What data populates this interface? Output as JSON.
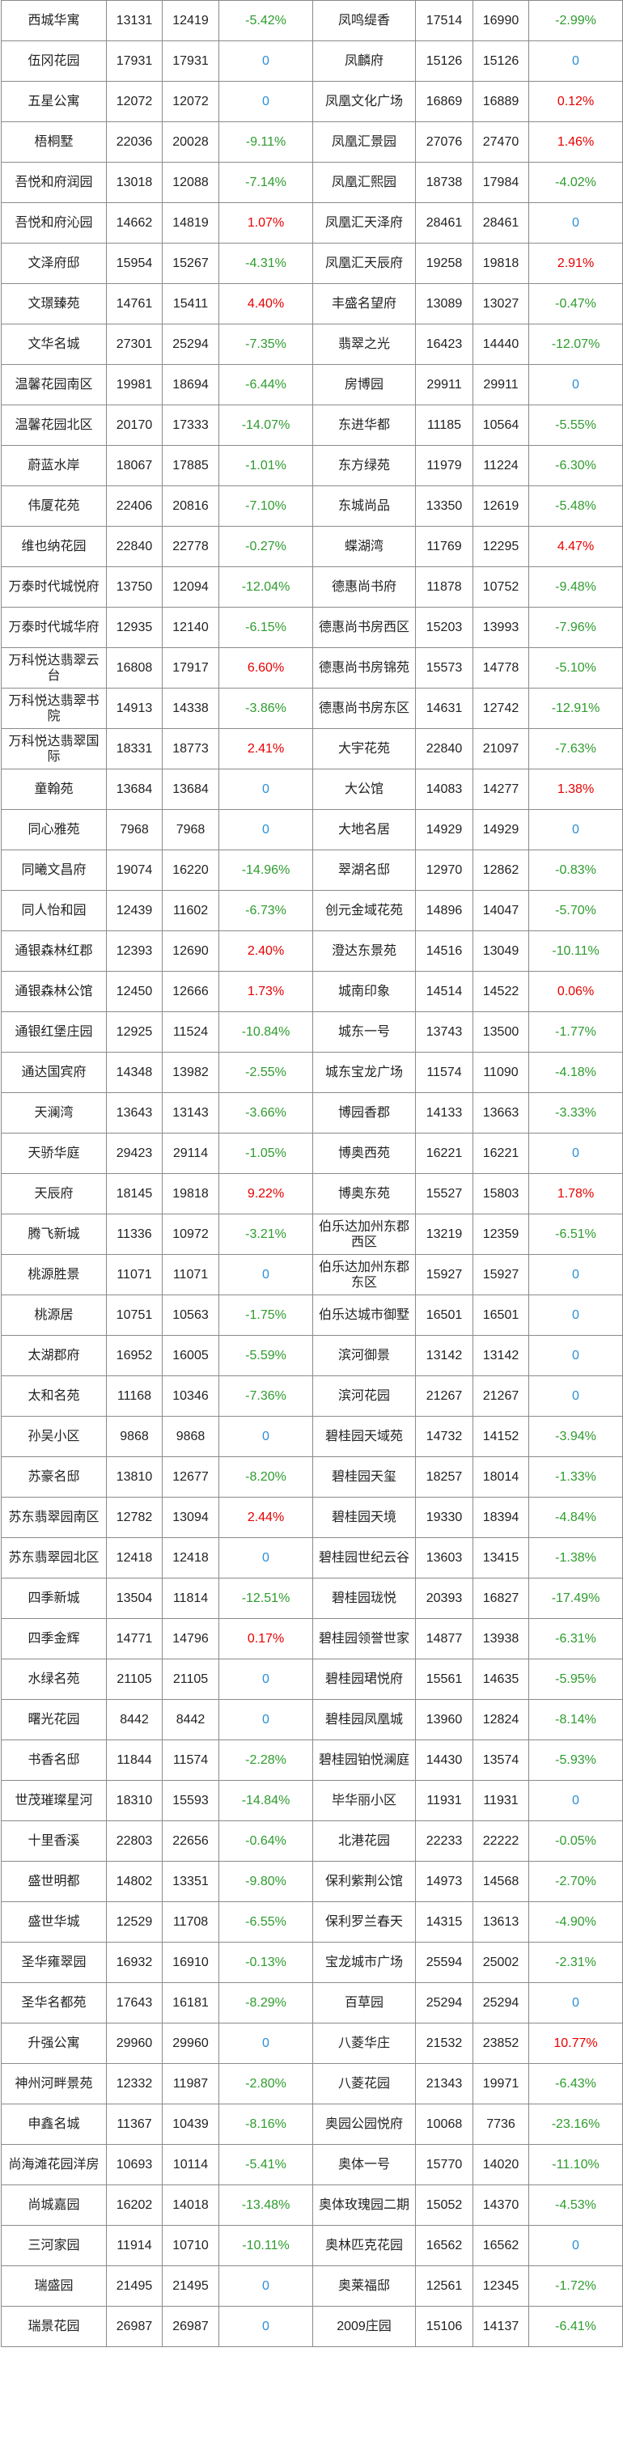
{
  "colors": {
    "up": "#e60000",
    "down": "#2e9c2e",
    "flat": "#2b8fd6"
  },
  "rows": [
    {
      "l": [
        "西城华寓",
        "13131",
        "12419",
        "-5.42%"
      ],
      "r": [
        "凤鸣缇香",
        "17514",
        "16990",
        "-2.99%"
      ]
    },
    {
      "l": [
        "伍冈花园",
        "17931",
        "17931",
        "0"
      ],
      "r": [
        "凤麟府",
        "15126",
        "15126",
        "0"
      ]
    },
    {
      "l": [
        "五星公寓",
        "12072",
        "12072",
        "0"
      ],
      "r": [
        "凤凰文化广场",
        "16869",
        "16889",
        "0.12%"
      ]
    },
    {
      "l": [
        "梧桐墅",
        "22036",
        "20028",
        "-9.11%"
      ],
      "r": [
        "凤凰汇景园",
        "27076",
        "27470",
        "1.46%"
      ]
    },
    {
      "l": [
        "吾悦和府润园",
        "13018",
        "12088",
        "-7.14%"
      ],
      "r": [
        "凤凰汇熙园",
        "18738",
        "17984",
        "-4.02%"
      ]
    },
    {
      "l": [
        "吾悦和府沁园",
        "14662",
        "14819",
        "1.07%"
      ],
      "r": [
        "凤凰汇天泽府",
        "28461",
        "28461",
        "0"
      ]
    },
    {
      "l": [
        "文泽府邸",
        "15954",
        "15267",
        "-4.31%"
      ],
      "r": [
        "凤凰汇天辰府",
        "19258",
        "19818",
        "2.91%"
      ]
    },
    {
      "l": [
        "文璟臻苑",
        "14761",
        "15411",
        "4.40%"
      ],
      "r": [
        "丰盛名望府",
        "13089",
        "13027",
        "-0.47%"
      ]
    },
    {
      "l": [
        "文华名城",
        "27301",
        "25294",
        "-7.35%"
      ],
      "r": [
        "翡翠之光",
        "16423",
        "14440",
        "-12.07%"
      ]
    },
    {
      "l": [
        "温馨花园南区",
        "19981",
        "18694",
        "-6.44%"
      ],
      "r": [
        "房博园",
        "29911",
        "29911",
        "0"
      ]
    },
    {
      "l": [
        "温馨花园北区",
        "20170",
        "17333",
        "-14.07%"
      ],
      "r": [
        "东进华都",
        "11185",
        "10564",
        "-5.55%"
      ]
    },
    {
      "l": [
        "蔚蓝水岸",
        "18067",
        "17885",
        "-1.01%"
      ],
      "r": [
        "东方绿苑",
        "11979",
        "11224",
        "-6.30%"
      ]
    },
    {
      "l": [
        "伟厦花苑",
        "22406",
        "20816",
        "-7.10%"
      ],
      "r": [
        "东城尚品",
        "13350",
        "12619",
        "-5.48%"
      ]
    },
    {
      "l": [
        "维也纳花园",
        "22840",
        "22778",
        "-0.27%"
      ],
      "r": [
        "蝶湖湾",
        "11769",
        "12295",
        "4.47%"
      ]
    },
    {
      "l": [
        "万泰时代城悦府",
        "13750",
        "12094",
        "-12.04%"
      ],
      "r": [
        "德惠尚书府",
        "11878",
        "10752",
        "-9.48%"
      ]
    },
    {
      "l": [
        "万泰时代城华府",
        "12935",
        "12140",
        "-6.15%"
      ],
      "r": [
        "德惠尚书房西区",
        "15203",
        "13993",
        "-7.96%"
      ]
    },
    {
      "l": [
        "万科悦达翡翠云台",
        "16808",
        "17917",
        "6.60%"
      ],
      "r": [
        "德惠尚书房锦苑",
        "15573",
        "14778",
        "-5.10%"
      ]
    },
    {
      "l": [
        "万科悦达翡翠书院",
        "14913",
        "14338",
        "-3.86%"
      ],
      "r": [
        "德惠尚书房东区",
        "14631",
        "12742",
        "-12.91%"
      ]
    },
    {
      "l": [
        "万科悦达翡翠国际",
        "18331",
        "18773",
        "2.41%"
      ],
      "r": [
        "大宇花苑",
        "22840",
        "21097",
        "-7.63%"
      ]
    },
    {
      "l": [
        "童翰苑",
        "13684",
        "13684",
        "0"
      ],
      "r": [
        "大公馆",
        "14083",
        "14277",
        "1.38%"
      ]
    },
    {
      "l": [
        "同心雅苑",
        "7968",
        "7968",
        "0"
      ],
      "r": [
        "大地名居",
        "14929",
        "14929",
        "0"
      ]
    },
    {
      "l": [
        "同曦文昌府",
        "19074",
        "16220",
        "-14.96%"
      ],
      "r": [
        "翠湖名邸",
        "12970",
        "12862",
        "-0.83%"
      ]
    },
    {
      "l": [
        "同人怡和园",
        "12439",
        "11602",
        "-6.73%"
      ],
      "r": [
        "创元金域花苑",
        "14896",
        "14047",
        "-5.70%"
      ]
    },
    {
      "l": [
        "通银森林红郡",
        "12393",
        "12690",
        "2.40%"
      ],
      "r": [
        "澄达东景苑",
        "14516",
        "13049",
        "-10.11%"
      ]
    },
    {
      "l": [
        "通银森林公馆",
        "12450",
        "12666",
        "1.73%"
      ],
      "r": [
        "城南印象",
        "14514",
        "14522",
        "0.06%"
      ]
    },
    {
      "l": [
        "通银红堡庄园",
        "12925",
        "11524",
        "-10.84%"
      ],
      "r": [
        "城东一号",
        "13743",
        "13500",
        "-1.77%"
      ]
    },
    {
      "l": [
        "通达国宾府",
        "14348",
        "13982",
        "-2.55%"
      ],
      "r": [
        "城东宝龙广场",
        "11574",
        "11090",
        "-4.18%"
      ]
    },
    {
      "l": [
        "天澜湾",
        "13643",
        "13143",
        "-3.66%"
      ],
      "r": [
        "博园香郡",
        "14133",
        "13663",
        "-3.33%"
      ]
    },
    {
      "l": [
        "天骄华庭",
        "29423",
        "29114",
        "-1.05%"
      ],
      "r": [
        "博奥西苑",
        "16221",
        "16221",
        "0"
      ]
    },
    {
      "l": [
        "天辰府",
        "18145",
        "19818",
        "9.22%"
      ],
      "r": [
        "博奥东苑",
        "15527",
        "15803",
        "1.78%"
      ]
    },
    {
      "l": [
        "腾飞新城",
        "11336",
        "10972",
        "-3.21%"
      ],
      "r": [
        "伯乐达加州东郡西区",
        "13219",
        "12359",
        "-6.51%"
      ]
    },
    {
      "l": [
        "桃源胜景",
        "11071",
        "11071",
        "0"
      ],
      "r": [
        "伯乐达加州东郡东区",
        "15927",
        "15927",
        "0"
      ]
    },
    {
      "l": [
        "桃源居",
        "10751",
        "10563",
        "-1.75%"
      ],
      "r": [
        "伯乐达城市御墅",
        "16501",
        "16501",
        "0"
      ]
    },
    {
      "l": [
        "太湖郡府",
        "16952",
        "16005",
        "-5.59%"
      ],
      "r": [
        "滨河御景",
        "13142",
        "13142",
        "0"
      ]
    },
    {
      "l": [
        "太和名苑",
        "11168",
        "10346",
        "-7.36%"
      ],
      "r": [
        "滨河花园",
        "21267",
        "21267",
        "0"
      ]
    },
    {
      "l": [
        "孙吴小区",
        "9868",
        "9868",
        "0"
      ],
      "r": [
        "碧桂园天域苑",
        "14732",
        "14152",
        "-3.94%"
      ]
    },
    {
      "l": [
        "苏豪名邸",
        "13810",
        "12677",
        "-8.20%"
      ],
      "r": [
        "碧桂园天玺",
        "18257",
        "18014",
        "-1.33%"
      ]
    },
    {
      "l": [
        "苏东翡翠园南区",
        "12782",
        "13094",
        "2.44%"
      ],
      "r": [
        "碧桂园天境",
        "19330",
        "18394",
        "-4.84%"
      ]
    },
    {
      "l": [
        "苏东翡翠园北区",
        "12418",
        "12418",
        "0"
      ],
      "r": [
        "碧桂园世纪云谷",
        "13603",
        "13415",
        "-1.38%"
      ]
    },
    {
      "l": [
        "四季新城",
        "13504",
        "11814",
        "-12.51%"
      ],
      "r": [
        "碧桂园珑悦",
        "20393",
        "16827",
        "-17.49%"
      ]
    },
    {
      "l": [
        "四季金辉",
        "14771",
        "14796",
        "0.17%"
      ],
      "r": [
        "碧桂园领誉世家",
        "14877",
        "13938",
        "-6.31%"
      ]
    },
    {
      "l": [
        "水绿名苑",
        "21105",
        "21105",
        "0"
      ],
      "r": [
        "碧桂园珺悦府",
        "15561",
        "14635",
        "-5.95%"
      ]
    },
    {
      "l": [
        "曙光花园",
        "8442",
        "8442",
        "0"
      ],
      "r": [
        "碧桂园凤凰城",
        "13960",
        "12824",
        "-8.14%"
      ]
    },
    {
      "l": [
        "书香名邸",
        "11844",
        "11574",
        "-2.28%"
      ],
      "r": [
        "碧桂园铂悦澜庭",
        "14430",
        "13574",
        "-5.93%"
      ]
    },
    {
      "l": [
        "世茂璀璨星河",
        "18310",
        "15593",
        "-14.84%"
      ],
      "r": [
        "毕华丽小区",
        "11931",
        "11931",
        "0"
      ]
    },
    {
      "l": [
        "十里香溪",
        "22803",
        "22656",
        "-0.64%"
      ],
      "r": [
        "北港花园",
        "22233",
        "22222",
        "-0.05%"
      ]
    },
    {
      "l": [
        "盛世明都",
        "14802",
        "13351",
        "-9.80%"
      ],
      "r": [
        "保利紫荆公馆",
        "14973",
        "14568",
        "-2.70%"
      ]
    },
    {
      "l": [
        "盛世华城",
        "12529",
        "11708",
        "-6.55%"
      ],
      "r": [
        "保利罗兰春天",
        "14315",
        "13613",
        "-4.90%"
      ]
    },
    {
      "l": [
        "圣华雍翠园",
        "16932",
        "16910",
        "-0.13%"
      ],
      "r": [
        "宝龙城市广场",
        "25594",
        "25002",
        "-2.31%"
      ]
    },
    {
      "l": [
        "圣华名都苑",
        "17643",
        "16181",
        "-8.29%"
      ],
      "r": [
        "百草园",
        "25294",
        "25294",
        "0"
      ]
    },
    {
      "l": [
        "升强公寓",
        "29960",
        "29960",
        "0"
      ],
      "r": [
        "八菱华庄",
        "21532",
        "23852",
        "10.77%"
      ]
    },
    {
      "l": [
        "神州河畔景苑",
        "12332",
        "11987",
        "-2.80%"
      ],
      "r": [
        "八菱花园",
        "21343",
        "19971",
        "-6.43%"
      ]
    },
    {
      "l": [
        "申鑫名城",
        "11367",
        "10439",
        "-8.16%"
      ],
      "r": [
        "奥园公园悦府",
        "10068",
        "7736",
        "-23.16%"
      ]
    },
    {
      "l": [
        "尚海滩花园洋房",
        "10693",
        "10114",
        "-5.41%"
      ],
      "r": [
        "奥体一号",
        "15770",
        "14020",
        "-11.10%"
      ]
    },
    {
      "l": [
        "尚城嘉园",
        "16202",
        "14018",
        "-13.48%"
      ],
      "r": [
        "奥体玫瑰园二期",
        "15052",
        "14370",
        "-4.53%"
      ]
    },
    {
      "l": [
        "三河家园",
        "11914",
        "10710",
        "-10.11%"
      ],
      "r": [
        "奥林匹克花园",
        "16562",
        "16562",
        "0"
      ]
    },
    {
      "l": [
        "瑞盛园",
        "21495",
        "21495",
        "0"
      ],
      "r": [
        "奥莱福邸",
        "12561",
        "12345",
        "-1.72%"
      ]
    },
    {
      "l": [
        "瑞景花园",
        "26987",
        "26987",
        "0"
      ],
      "r": [
        "2009庄园",
        "15106",
        "14137",
        "-6.41%"
      ]
    }
  ]
}
